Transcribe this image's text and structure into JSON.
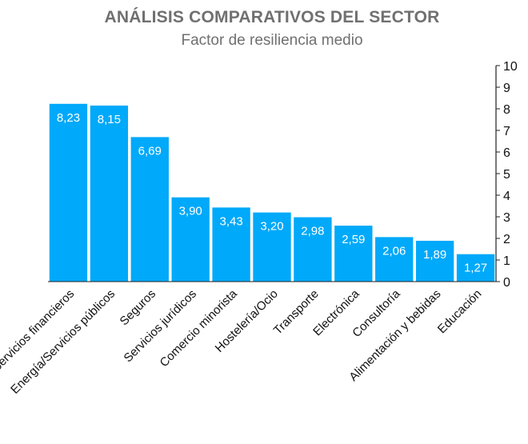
{
  "chart_data": {
    "type": "bar",
    "title": "ANÁLISIS COMPARATIVOS DEL SECTOR",
    "subtitle": "Factor de resiliencia medio",
    "xlabel": "",
    "ylabel": "",
    "ylim": [
      0,
      10
    ],
    "yticks": [
      "0",
      "1",
      "2",
      "3",
      "4",
      "5",
      "6",
      "7",
      "8",
      "9",
      "10"
    ],
    "y_axis_side": "right",
    "grid": false,
    "legend": "none",
    "bar_color": "#00A9F9",
    "categories": [
      "Servicios financieros",
      "Energía/Servicios públicos",
      "Seguros",
      "Servicios jurídicos",
      "Comercio minorista",
      "Hostelería/Ocio",
      "Transporte",
      "Electrónica",
      "Consultoría",
      "Alimentación y bebidas",
      "Educación"
    ],
    "values": [
      8.23,
      8.15,
      6.69,
      3.9,
      3.43,
      3.2,
      2.98,
      2.59,
      2.06,
      1.89,
      1.27
    ],
    "value_labels": [
      "8,23",
      "8,15",
      "6,69",
      "3,90",
      "3,43",
      "3,20",
      "2,98",
      "2,59",
      "2,06",
      "1,89",
      "1,27"
    ]
  }
}
